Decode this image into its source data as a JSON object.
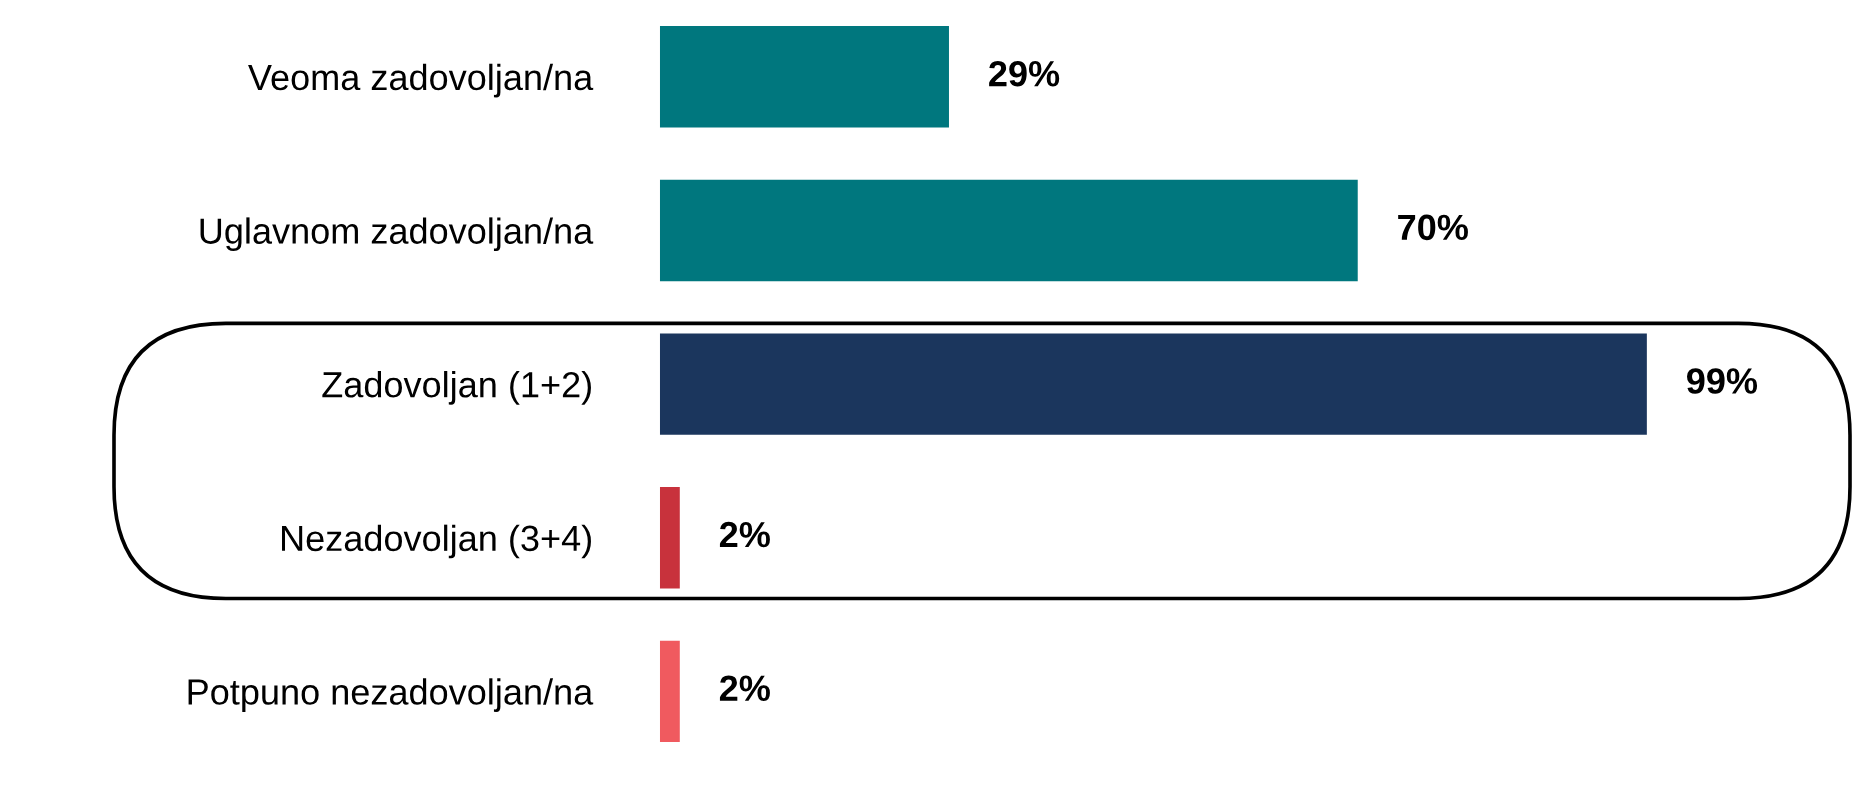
{
  "chart_data": {
    "type": "bar",
    "orientation": "horizontal",
    "categories": [
      "Veoma zadovoljan/na",
      "Uglavnom zadovoljan/na",
      "Zadovoljan (1+2)",
      "Nezadovoljan (3+4)",
      "Potpuno nezadovoljan/na"
    ],
    "values": [
      29,
      70,
      99,
      2,
      2
    ],
    "colors": [
      "#00777e",
      "#00777e",
      "#1b365d",
      "#c8323c",
      "#f05a5f"
    ],
    "value_labels": [
      "29%",
      "70%",
      "99%",
      "2%",
      "2%"
    ],
    "grid": false,
    "legend": false
  }
}
